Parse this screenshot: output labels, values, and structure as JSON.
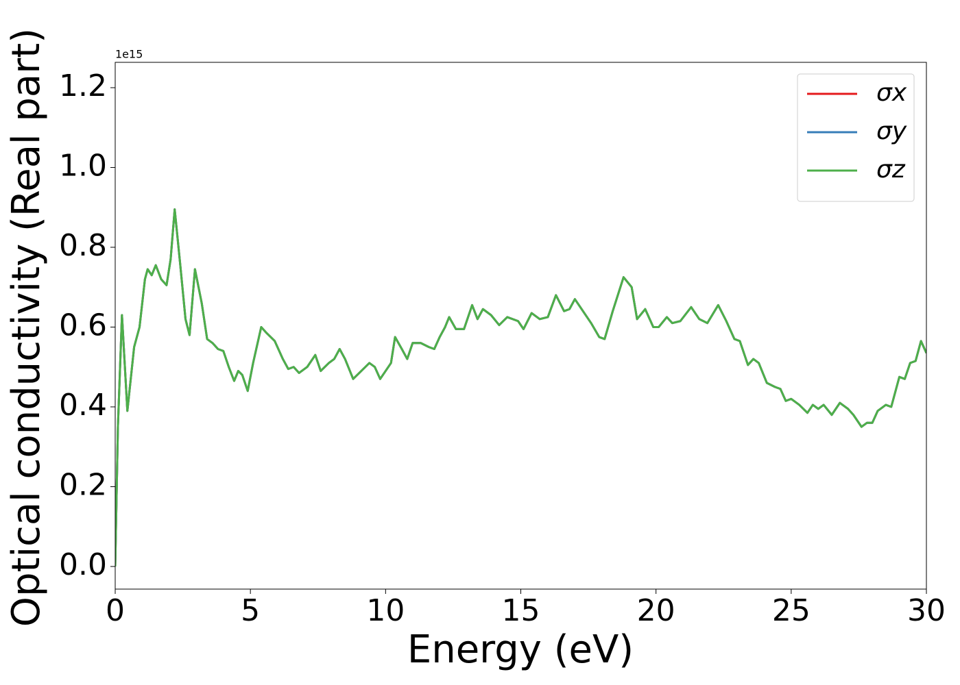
{
  "chart_data": {
    "type": "line",
    "xlabel": "Energy (eV)",
    "ylabel": "Optical conductivity (Real part)",
    "offset_text": "1e15",
    "x": [
      0,
      0.1,
      0.25,
      0.45,
      0.7,
      0.9,
      1.1,
      1.2,
      1.35,
      1.5,
      1.7,
      1.9,
      2.05,
      2.2,
      2.4,
      2.6,
      2.75,
      2.95,
      3.2,
      3.4,
      3.6,
      3.8,
      4.0,
      4.2,
      4.4,
      4.55,
      4.7,
      4.9,
      5.1,
      5.4,
      5.6,
      5.9,
      6.2,
      6.4,
      6.6,
      6.8,
      7.1,
      7.4,
      7.6,
      7.9,
      8.1,
      8.3,
      8.5,
      8.8,
      9.1,
      9.4,
      9.6,
      9.8,
      10.0,
      10.2,
      10.35,
      10.6,
      10.8,
      11.0,
      11.3,
      11.6,
      11.8,
      12.0,
      12.2,
      12.35,
      12.6,
      12.9,
      13.2,
      13.4,
      13.6,
      13.9,
      14.2,
      14.5,
      14.9,
      15.1,
      15.4,
      15.7,
      16.0,
      16.3,
      16.6,
      16.8,
      17.0,
      17.3,
      17.6,
      17.9,
      18.1,
      18.4,
      18.8,
      19.1,
      19.3,
      19.6,
      19.9,
      20.1,
      20.4,
      20.6,
      20.9,
      21.3,
      21.6,
      21.9,
      22.3,
      22.6,
      22.9,
      23.1,
      23.4,
      23.6,
      23.8,
      24.1,
      24.4,
      24.6,
      24.8,
      25.0,
      25.3,
      25.6,
      25.8,
      26.0,
      26.2,
      26.5,
      26.8,
      27.1,
      27.3,
      27.6,
      27.8,
      28.0,
      28.2,
      28.5,
      28.7,
      29.0,
      29.2,
      29.4,
      29.6,
      29.8,
      30.0
    ],
    "series": [
      {
        "name": "σx",
        "color": "#e41a1c",
        "values": [
          0,
          0.35,
          0.63,
          0.39,
          0.55,
          0.6,
          0.72,
          0.745,
          0.73,
          0.755,
          0.72,
          0.705,
          0.77,
          0.895,
          0.76,
          0.62,
          0.58,
          0.745,
          0.66,
          0.57,
          0.56,
          0.545,
          0.54,
          0.5,
          0.465,
          0.49,
          0.48,
          0.44,
          0.51,
          0.6,
          0.585,
          0.565,
          0.52,
          0.495,
          0.5,
          0.485,
          0.5,
          0.53,
          0.49,
          0.51,
          0.52,
          0.545,
          0.52,
          0.47,
          0.49,
          0.51,
          0.5,
          0.47,
          0.49,
          0.51,
          0.575,
          0.545,
          0.52,
          0.56,
          0.56,
          0.55,
          0.545,
          0.575,
          0.6,
          0.625,
          0.595,
          0.595,
          0.655,
          0.62,
          0.645,
          0.63,
          0.605,
          0.625,
          0.615,
          0.595,
          0.635,
          0.62,
          0.625,
          0.68,
          0.64,
          0.645,
          0.67,
          0.64,
          0.61,
          0.575,
          0.57,
          0.64,
          0.725,
          0.7,
          0.62,
          0.645,
          0.6,
          0.6,
          0.625,
          0.61,
          0.615,
          0.65,
          0.62,
          0.61,
          0.655,
          0.615,
          0.57,
          0.565,
          0.505,
          0.52,
          0.51,
          0.46,
          0.45,
          0.445,
          0.415,
          0.42,
          0.405,
          0.385,
          0.405,
          0.395,
          0.405,
          0.38,
          0.41,
          0.395,
          0.38,
          0.35,
          0.36,
          0.36,
          0.39,
          0.405,
          0.4,
          0.475,
          0.47,
          0.51,
          0.515,
          0.565,
          0.535
        ]
      },
      {
        "name": "σy",
        "color": "#377eb8",
        "values": [
          0,
          0.35,
          0.63,
          0.39,
          0.55,
          0.6,
          0.72,
          0.745,
          0.73,
          0.755,
          0.72,
          0.705,
          0.77,
          0.895,
          0.76,
          0.62,
          0.58,
          0.745,
          0.66,
          0.57,
          0.56,
          0.545,
          0.54,
          0.5,
          0.465,
          0.49,
          0.48,
          0.44,
          0.51,
          0.6,
          0.585,
          0.565,
          0.52,
          0.495,
          0.5,
          0.485,
          0.5,
          0.53,
          0.49,
          0.51,
          0.52,
          0.545,
          0.52,
          0.47,
          0.49,
          0.51,
          0.5,
          0.47,
          0.49,
          0.51,
          0.575,
          0.545,
          0.52,
          0.56,
          0.56,
          0.55,
          0.545,
          0.575,
          0.6,
          0.625,
          0.595,
          0.595,
          0.655,
          0.62,
          0.645,
          0.63,
          0.605,
          0.625,
          0.615,
          0.595,
          0.635,
          0.62,
          0.625,
          0.68,
          0.64,
          0.645,
          0.67,
          0.64,
          0.61,
          0.575,
          0.57,
          0.64,
          0.725,
          0.7,
          0.62,
          0.645,
          0.6,
          0.6,
          0.625,
          0.61,
          0.615,
          0.65,
          0.62,
          0.61,
          0.655,
          0.615,
          0.57,
          0.565,
          0.505,
          0.52,
          0.51,
          0.46,
          0.45,
          0.445,
          0.415,
          0.42,
          0.405,
          0.385,
          0.405,
          0.395,
          0.405,
          0.38,
          0.41,
          0.395,
          0.38,
          0.35,
          0.36,
          0.36,
          0.39,
          0.405,
          0.4,
          0.475,
          0.47,
          0.51,
          0.515,
          0.565,
          0.535
        ]
      },
      {
        "name": "σz",
        "color": "#4daf4a",
        "values": [
          0,
          0.35,
          0.63,
          0.39,
          0.55,
          0.6,
          0.72,
          0.745,
          0.73,
          0.755,
          0.72,
          0.705,
          0.77,
          0.895,
          0.76,
          0.62,
          0.58,
          0.745,
          0.66,
          0.57,
          0.56,
          0.545,
          0.54,
          0.5,
          0.465,
          0.49,
          0.48,
          0.44,
          0.51,
          0.6,
          0.585,
          0.565,
          0.52,
          0.495,
          0.5,
          0.485,
          0.5,
          0.53,
          0.49,
          0.51,
          0.52,
          0.545,
          0.52,
          0.47,
          0.49,
          0.51,
          0.5,
          0.47,
          0.49,
          0.51,
          0.575,
          0.545,
          0.52,
          0.56,
          0.56,
          0.55,
          0.545,
          0.575,
          0.6,
          0.625,
          0.595,
          0.595,
          0.655,
          0.62,
          0.645,
          0.63,
          0.605,
          0.625,
          0.615,
          0.595,
          0.635,
          0.62,
          0.625,
          0.68,
          0.64,
          0.645,
          0.67,
          0.64,
          0.61,
          0.575,
          0.57,
          0.64,
          0.725,
          0.7,
          0.62,
          0.645,
          0.6,
          0.6,
          0.625,
          0.61,
          0.615,
          0.65,
          0.62,
          0.61,
          0.655,
          0.615,
          0.57,
          0.565,
          0.505,
          0.52,
          0.51,
          0.46,
          0.45,
          0.445,
          0.415,
          0.42,
          0.405,
          0.385,
          0.405,
          0.395,
          0.405,
          0.38,
          0.41,
          0.395,
          0.38,
          0.35,
          0.36,
          0.36,
          0.39,
          0.405,
          0.4,
          0.475,
          0.47,
          0.51,
          0.515,
          0.565,
          0.535
        ]
      }
    ],
    "xlim": [
      0,
      30
    ],
    "xticks": [
      0,
      5,
      10,
      15,
      20,
      25,
      30
    ],
    "ylim": [
      -0.0567,
      1.2635
    ],
    "yticks": [
      {
        "value": 0,
        "label": "0.0"
      },
      {
        "value": 0.2,
        "label": "0.2"
      },
      {
        "value": 0.4,
        "label": "0.4"
      },
      {
        "value": 0.6,
        "label": "0.6"
      },
      {
        "value": 0.8,
        "label": "0.8"
      },
      {
        "value": 1,
        "label": "1.0"
      },
      {
        "value": 1.2,
        "label": "1.2"
      }
    ],
    "legend": "upper right",
    "grid": false
  }
}
